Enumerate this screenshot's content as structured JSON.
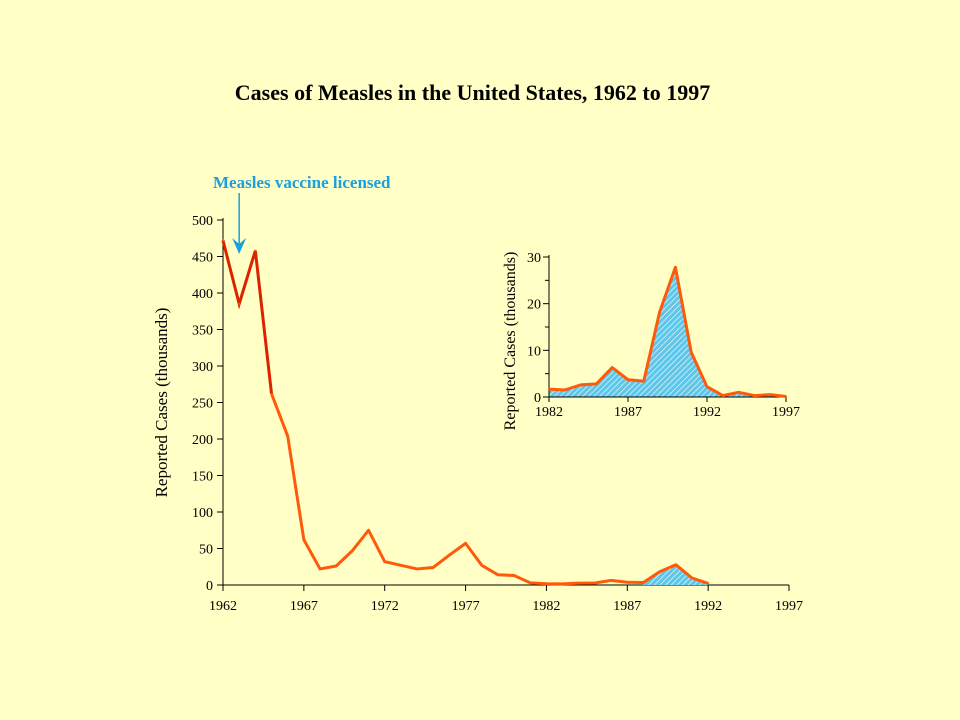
{
  "colors": {
    "background": "#ffffc6",
    "line_early": "#dd2200",
    "line_late": "#ff5a0a",
    "annotation": "#1a9fdf",
    "fill": "#5ec6e8"
  },
  "chart_data": [
    {
      "type": "line",
      "title": "Cases of Measles in the United States, 1962 to 1997",
      "xlabel": "",
      "ylabel": "Reported Cases (thousands)",
      "xlim": [
        1962,
        1997
      ],
      "ylim": [
        0,
        500
      ],
      "x_ticks": [
        1962,
        1967,
        1972,
        1977,
        1982,
        1987,
        1992,
        1997
      ],
      "y_ticks": [
        0,
        50,
        100,
        150,
        200,
        250,
        300,
        350,
        400,
        450,
        500
      ],
      "annotation": {
        "text": "Measles vaccine licensed",
        "x": 1963
      },
      "series": [
        {
          "x": [
            1962,
            1963,
            1964,
            1965,
            1966,
            1967,
            1968,
            1969,
            1970,
            1971,
            1972,
            1973,
            1974,
            1975,
            1976,
            1977,
            1978,
            1979,
            1980,
            1981,
            1982,
            1983,
            1984,
            1985,
            1986,
            1987,
            1988,
            1989,
            1990,
            1991,
            1992
          ],
          "values": [
            472,
            385,
            458,
            262,
            204,
            62,
            22,
            26,
            47,
            75,
            32,
            27,
            22,
            24,
            41,
            57,
            27,
            14,
            13,
            3,
            1.7,
            1.5,
            2.6,
            2.8,
            6.3,
            3.7,
            3.4,
            18.2,
            27.8,
            9.6,
            2.2
          ]
        }
      ]
    },
    {
      "type": "area",
      "title": "",
      "xlabel": "",
      "ylabel": "Reported Cases (thousands)",
      "xlim": [
        1982,
        1997
      ],
      "ylim": [
        0,
        30
      ],
      "x_ticks": [
        1982,
        1987,
        1992,
        1997
      ],
      "y_ticks": [
        0,
        10,
        20,
        30
      ],
      "series": [
        {
          "x": [
            1982,
            1983,
            1984,
            1985,
            1986,
            1987,
            1988,
            1989,
            1990,
            1991,
            1992,
            1993,
            1994,
            1995,
            1996,
            1997
          ],
          "values": [
            1.7,
            1.5,
            2.6,
            2.8,
            6.3,
            3.7,
            3.4,
            18.2,
            27.8,
            9.6,
            2.2,
            0.3,
            1.0,
            0.3,
            0.5,
            0.1
          ]
        }
      ]
    }
  ]
}
